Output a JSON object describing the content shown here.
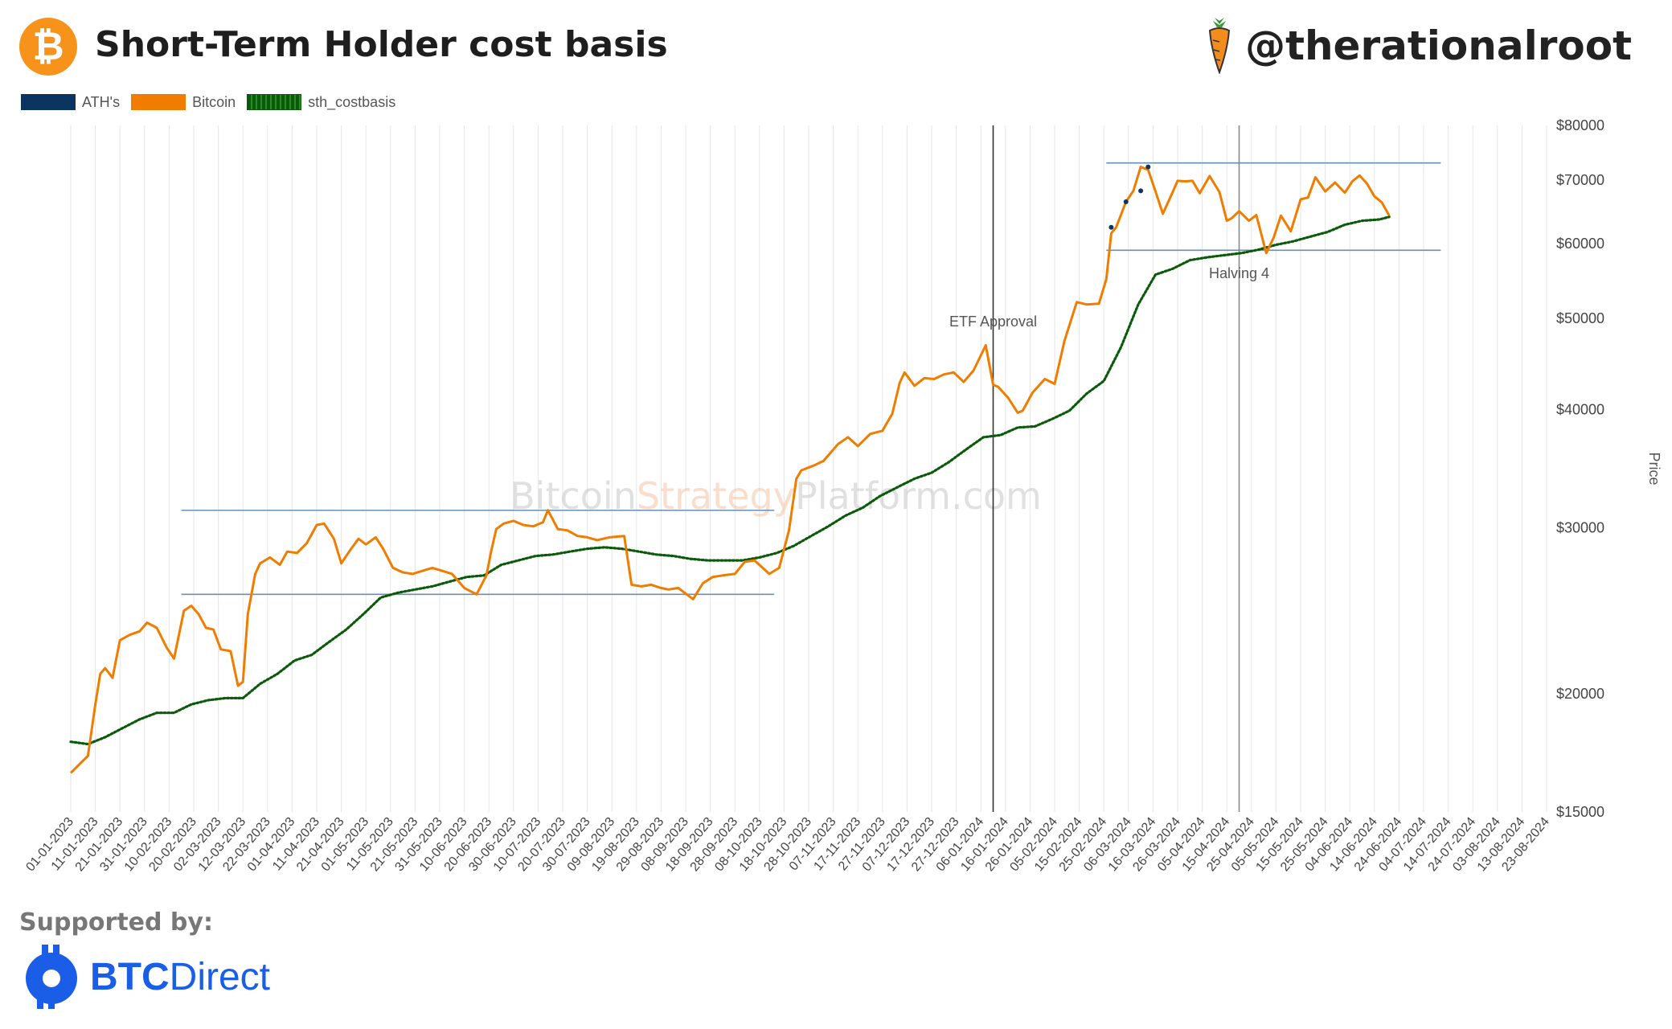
{
  "header": {
    "title": "Short-Term Holder cost basis",
    "handle": "@therationalroot",
    "logo_glyph": "₿"
  },
  "legend": [
    {
      "label": "ATH's",
      "color": "#0b3560"
    },
    {
      "label": "Bitcoin",
      "color": "#f07c00"
    },
    {
      "label": "sth_costbasis",
      "color": "#0a5a0a"
    }
  ],
  "footer": {
    "supported_label": "Supported by:",
    "sponsor_bold": "BTC",
    "sponsor_rest": "Direct"
  },
  "chart_data": {
    "type": "line",
    "title": "Short-Term Holder cost basis",
    "watermark_parts": [
      "Bitcoin",
      "Strategy",
      "Platform.com"
    ],
    "ylabel": "Price",
    "yscale": "log",
    "ylim": [
      15000,
      80000
    ],
    "y_ticks": [
      15000,
      20000,
      30000,
      40000,
      50000,
      60000,
      70000,
      80000
    ],
    "y_tick_labels": [
      "$15000",
      "$20000",
      "$30000",
      "$40000",
      "$50000",
      "$60000",
      "$70000",
      "$80000"
    ],
    "x_tick_labels": [
      "01-01-2023",
      "11-01-2023",
      "21-01-2023",
      "31-01-2023",
      "10-02-2023",
      "20-02-2023",
      "02-03-2023",
      "12-03-2023",
      "22-03-2023",
      "01-04-2023",
      "11-04-2023",
      "21-04-2023",
      "01-05-2023",
      "11-05-2023",
      "21-05-2023",
      "31-05-2023",
      "10-06-2023",
      "20-06-2023",
      "30-06-2023",
      "10-07-2023",
      "20-07-2023",
      "30-07-2023",
      "09-08-2023",
      "19-08-2023",
      "29-08-2023",
      "08-09-2023",
      "18-09-2023",
      "28-09-2023",
      "08-10-2023",
      "18-10-2023",
      "28-10-2023",
      "07-11-2023",
      "17-11-2023",
      "27-11-2023",
      "07-12-2023",
      "17-12-2023",
      "27-12-2023",
      "06-01-2024",
      "16-01-2024",
      "26-01-2024",
      "05-02-2024",
      "15-02-2024",
      "25-02-2024",
      "06-03-2024",
      "16-03-2024",
      "26-03-2024",
      "05-04-2024",
      "15-04-2024",
      "25-04-2024",
      "05-05-2024",
      "15-05-2024",
      "25-05-2024",
      "04-06-2024",
      "14-06-2024",
      "24-06-2024",
      "04-07-2024",
      "14-07-2024",
      "24-07-2024",
      "03-08-2024",
      "13-08-2024",
      "23-08-2024"
    ],
    "grid": true,
    "legend_position": "top-left",
    "series": [
      {
        "name": "Bitcoin",
        "color": "#f07c00",
        "x": [
          "01-01-2023",
          "08-01-2023",
          "11-01-2023",
          "13-01-2023",
          "15-01-2023",
          "18-01-2023",
          "21-01-2023",
          "25-01-2023",
          "29-01-2023",
          "01-02-2023",
          "05-02-2023",
          "09-02-2023",
          "12-02-2023",
          "16-02-2023",
          "19-02-2023",
          "22-02-2023",
          "25-02-2023",
          "28-02-2023",
          "03-03-2023",
          "07-03-2023",
          "10-03-2023",
          "12-03-2023",
          "14-03-2023",
          "17-03-2023",
          "19-03-2023",
          "23-03-2023",
          "27-03-2023",
          "30-03-2023",
          "03-04-2023",
          "07-04-2023",
          "11-04-2023",
          "14-04-2023",
          "18-04-2023",
          "21-04-2023",
          "25-04-2023",
          "28-04-2023",
          "01-05-2023",
          "05-05-2023",
          "08-05-2023",
          "12-05-2023",
          "16-05-2023",
          "20-05-2023",
          "24-05-2023",
          "28-05-2023",
          "01-06-2023",
          "05-06-2023",
          "10-06-2023",
          "15-06-2023",
          "19-06-2023",
          "21-06-2023",
          "23-06-2023",
          "26-06-2023",
          "30-06-2023",
          "04-07-2023",
          "08-07-2023",
          "12-07-2023",
          "14-07-2023",
          "18-07-2023",
          "22-07-2023",
          "26-07-2023",
          "30-07-2023",
          "03-08-2023",
          "08-08-2023",
          "14-08-2023",
          "17-08-2023",
          "21-08-2023",
          "25-08-2023",
          "29-08-2023",
          "01-09-2023",
          "05-09-2023",
          "11-09-2023",
          "15-09-2023",
          "19-09-2023",
          "23-09-2023",
          "28-09-2023",
          "02-10-2023",
          "06-10-2023",
          "12-10-2023",
          "16-10-2023",
          "20-10-2023",
          "23-10-2023",
          "25-10-2023",
          "30-10-2023",
          "03-11-2023",
          "09-11-2023",
          "13-11-2023",
          "17-11-2023",
          "22-11-2023",
          "27-11-2023",
          "01-12-2023",
          "04-12-2023",
          "06-12-2023",
          "10-12-2023",
          "14-12-2023",
          "18-12-2023",
          "22-12-2023",
          "26-12-2023",
          "30-12-2023",
          "03-01-2024",
          "08-01-2024",
          "11-01-2024",
          "13-01-2024",
          "17-01-2024",
          "21-01-2024",
          "23-01-2024",
          "27-01-2024",
          "01-02-2024",
          "05-02-2024",
          "09-02-2024",
          "14-02-2024",
          "18-02-2024",
          "23-02-2024",
          "26-02-2024",
          "28-02-2024",
          "01-03-2024",
          "05-03-2024",
          "08-03-2024",
          "11-03-2024",
          "14-03-2024",
          "17-03-2024",
          "20-03-2024",
          "23-03-2024",
          "26-03-2024",
          "29-03-2024",
          "01-04-2024",
          "04-04-2024",
          "08-04-2024",
          "12-04-2024",
          "15-04-2024",
          "17-04-2024",
          "20-04-2024",
          "24-04-2024",
          "27-04-2024",
          "01-05-2024",
          "04-05-2024",
          "07-05-2024",
          "11-05-2024",
          "15-05-2024",
          "18-05-2024",
          "21-05-2024",
          "25-05-2024",
          "29-05-2024",
          "02-06-2024",
          "05-06-2024",
          "08-06-2024",
          "11-06-2024",
          "14-06-2024",
          "17-06-2024",
          "20-06-2024"
        ],
        "values": [
          16500,
          17200,
          19500,
          21000,
          21300,
          20800,
          22800,
          23100,
          23300,
          23800,
          23500,
          22400,
          21800,
          24500,
          24800,
          24300,
          23500,
          23400,
          22300,
          22200,
          20400,
          20600,
          24300,
          26800,
          27500,
          27900,
          27400,
          28300,
          28200,
          28900,
          30200,
          30300,
          29200,
          27500,
          28500,
          29200,
          28800,
          29300,
          28500,
          27200,
          26900,
          26800,
          27000,
          27200,
          27000,
          26800,
          25900,
          25500,
          26700,
          28400,
          29900,
          30300,
          30500,
          30200,
          30100,
          30400,
          31300,
          29900,
          29800,
          29400,
          29300,
          29100,
          29300,
          29400,
          26100,
          26000,
          26100,
          25900,
          25800,
          25900,
          25200,
          26200,
          26600,
          26700,
          26800,
          27600,
          27700,
          26800,
          27200,
          29800,
          33800,
          34500,
          34900,
          35300,
          36800,
          37400,
          36600,
          37700,
          38000,
          39600,
          42700,
          43800,
          42400,
          43200,
          43100,
          43600,
          43800,
          42800,
          44000,
          46800,
          42500,
          42300,
          41200,
          39700,
          39900,
          41700,
          43100,
          42600,
          47300,
          52000,
          51700,
          51800,
          55000,
          61500,
          62400,
          66400,
          68200,
          72300,
          71800,
          68100,
          64500,
          67100,
          69900,
          69800,
          69900,
          67800,
          70700,
          68000,
          63400,
          63800,
          64900,
          63400,
          64300,
          58600,
          60800,
          64200,
          61800,
          66800,
          67100,
          70500,
          68100,
          69600,
          67900,
          69800,
          70800,
          69400,
          67300,
          66300,
          64200
        ]
      },
      {
        "name": "sth_costbasis",
        "color": "#0a5a0a",
        "x": [
          "01-01-2023",
          "08-01-2023",
          "15-01-2023",
          "22-01-2023",
          "29-01-2023",
          "05-02-2023",
          "12-02-2023",
          "19-02-2023",
          "26-02-2023",
          "05-03-2023",
          "12-03-2023",
          "19-03-2023",
          "26-03-2023",
          "02-04-2023",
          "09-04-2023",
          "16-04-2023",
          "23-04-2023",
          "30-04-2023",
          "07-05-2023",
          "14-05-2023",
          "21-05-2023",
          "28-05-2023",
          "04-06-2023",
          "11-06-2023",
          "18-06-2023",
          "25-06-2023",
          "02-07-2023",
          "09-07-2023",
          "16-07-2023",
          "23-07-2023",
          "30-07-2023",
          "06-08-2023",
          "13-08-2023",
          "20-08-2023",
          "27-08-2023",
          "03-09-2023",
          "10-09-2023",
          "17-09-2023",
          "24-09-2023",
          "01-10-2023",
          "08-10-2023",
          "15-10-2023",
          "22-10-2023",
          "29-10-2023",
          "05-11-2023",
          "12-11-2023",
          "19-11-2023",
          "26-11-2023",
          "03-12-2023",
          "10-12-2023",
          "17-12-2023",
          "24-12-2023",
          "31-12-2023",
          "07-01-2024",
          "14-01-2024",
          "21-01-2024",
          "28-01-2024",
          "04-02-2024",
          "11-02-2024",
          "18-02-2024",
          "25-02-2024",
          "03-03-2024",
          "10-03-2024",
          "17-03-2024",
          "24-03-2024",
          "31-03-2024",
          "07-04-2024",
          "14-04-2024",
          "21-04-2024",
          "28-04-2024",
          "05-05-2024",
          "12-05-2024",
          "19-05-2024",
          "26-05-2024",
          "02-06-2024",
          "09-06-2024",
          "16-06-2024",
          "20-06-2024"
        ],
        "values": [
          17800,
          17700,
          18000,
          18400,
          18800,
          19100,
          19100,
          19500,
          19700,
          19800,
          19800,
          20500,
          21000,
          21700,
          22000,
          22700,
          23400,
          24300,
          25300,
          25600,
          25800,
          26000,
          26300,
          26600,
          26700,
          27400,
          27700,
          28000,
          28100,
          28300,
          28500,
          28600,
          28500,
          28300,
          28100,
          28000,
          27800,
          27700,
          27700,
          27700,
          27900,
          28200,
          28700,
          29400,
          30100,
          30900,
          31500,
          32400,
          33100,
          33800,
          34300,
          35200,
          36300,
          37400,
          37600,
          38300,
          38400,
          39100,
          39900,
          41600,
          42900,
          46600,
          51700,
          55600,
          56400,
          57600,
          58000,
          58300,
          58600,
          59100,
          59800,
          60300,
          61000,
          61700,
          62800,
          63400,
          63600,
          64000
        ]
      },
      {
        "name": "ATH's",
        "color": "#0b3560",
        "x": [
          "28-02-2024",
          "05-03-2024",
          "11-03-2024",
          "14-03-2024"
        ],
        "values": [
          62400,
          66400,
          68200,
          72300
        ]
      }
    ],
    "annotations": [
      {
        "type": "vline",
        "x": "11-01-2024",
        "label": "ETF Approval"
      },
      {
        "type": "vline",
        "x": "20-04-2024",
        "label": "Halving 4"
      },
      {
        "type": "hline",
        "y": 31300,
        "x_range": [
          "15-02-2023",
          "14-10-2023"
        ]
      },
      {
        "type": "hline",
        "y": 25500,
        "x_range": [
          "15-02-2023",
          "14-10-2023"
        ]
      },
      {
        "type": "hline",
        "y": 73000,
        "x_range": [
          "26-02-2024",
          "11-07-2024"
        ]
      },
      {
        "type": "hline",
        "y": 59000,
        "x_range": [
          "26-02-2024",
          "11-07-2024"
        ]
      }
    ]
  }
}
